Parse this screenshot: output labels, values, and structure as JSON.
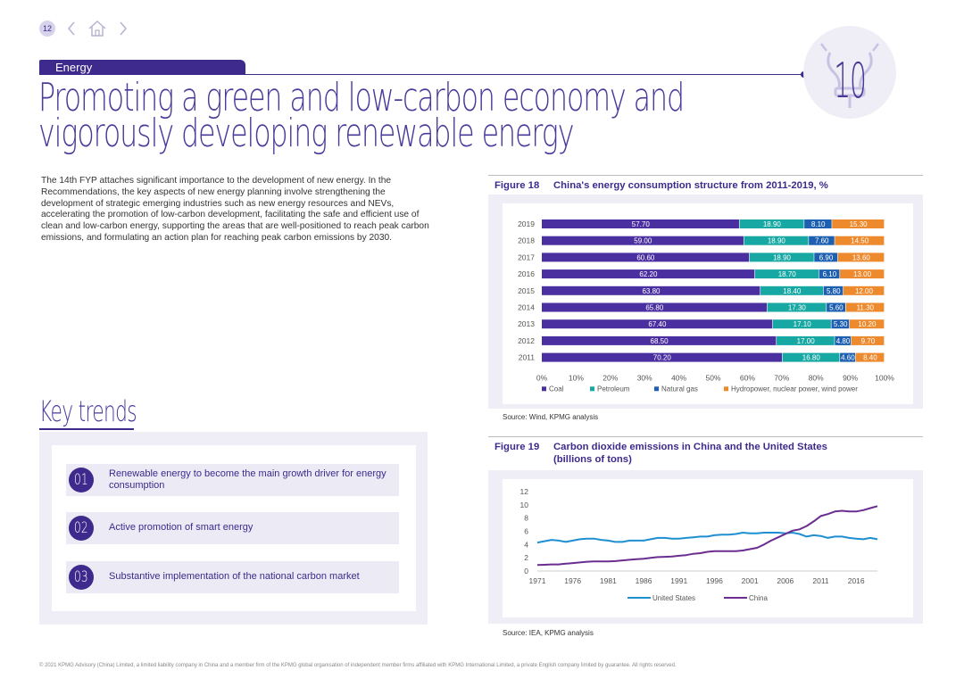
{
  "nav": {
    "page_number": "12"
  },
  "section": {
    "label": "Energy"
  },
  "badge": {
    "number": "10"
  },
  "title": {
    "line1": "Promoting a green and low-carbon economy and",
    "line2": "vigorously developing renewable energy"
  },
  "body_text": "The 14th FYP attaches significant importance to the development of new energy. In the Recommendations, the key aspects of new energy planning involve strengthening the development of strategic emerging industries such as new energy resources and NEVs, accelerating the promotion of low-carbon development, facilitating the safe and efficient use of clean and low-carbon energy, supporting the areas that are well-positioned to reach peak carbon emissions, and formulating an action plan for reaching peak carbon emissions by 2030.",
  "key_trends": {
    "heading": "Key trends",
    "items": [
      {
        "num": "01",
        "text": "Renewable energy to become the main growth driver for energy consumption"
      },
      {
        "num": "02",
        "text": "Active promotion of smart energy"
      },
      {
        "num": "03",
        "text": "Substantive implementation of the national carbon market"
      }
    ]
  },
  "figure18": {
    "label": "Figure 18",
    "title": "China's energy consumption structure from 2011-2019, %",
    "source": "Source: Wind, KPMG analysis"
  },
  "figure19": {
    "label": "Figure 19",
    "title_line1": "Carbon dioxide emissions in China and the United States",
    "title_line2": "(billions of tons)",
    "source": "Source: IEA, KPMG analysis"
  },
  "colors": {
    "coal": "#4a2fa0",
    "petroleum": "#17a8a3",
    "natural_gas": "#1d5fb0",
    "hydro": "#ee8a2e",
    "us": "#1f8fd1",
    "china": "#6b2d8f",
    "brand": "#3d2a8c"
  },
  "chart_data": [
    {
      "type": "bar",
      "orientation": "horizontal-stacked-100",
      "title": "China's energy consumption structure from 2011-2019, %",
      "categories": [
        "2019",
        "2018",
        "2017",
        "2016",
        "2015",
        "2014",
        "2013",
        "2012",
        "2011"
      ],
      "series": [
        {
          "name": "Coal",
          "values": [
            57.7,
            59.0,
            60.6,
            62.2,
            63.8,
            65.8,
            67.4,
            68.5,
            70.2
          ],
          "labels": [
            "57.70",
            "59.00",
            "60.60",
            "62.20",
            "63.80",
            "65.80",
            "67.40",
            "68.50",
            "70.20"
          ]
        },
        {
          "name": "Petroleum",
          "values": [
            18.9,
            18.9,
            18.9,
            18.7,
            18.4,
            17.3,
            17.1,
            17.0,
            16.8
          ],
          "labels": [
            "18.90",
            "18.90",
            "18.90",
            "18.70",
            "18.40",
            "17.30",
            "17.10",
            "17.00",
            "16.80"
          ]
        },
        {
          "name": "Natural gas",
          "values": [
            8.1,
            7.6,
            6.9,
            6.1,
            5.8,
            5.6,
            5.3,
            4.8,
            4.6
          ],
          "labels": [
            "8.10",
            "7.60",
            "6.90",
            "6.10",
            "5.80",
            "5.60",
            "5.30",
            "4.80",
            "4.60"
          ]
        },
        {
          "name": "Hydropower, nuclear power, wind power",
          "values": [
            15.3,
            14.5,
            13.6,
            13.0,
            12.0,
            11.3,
            10.2,
            9.7,
            8.4
          ],
          "labels": [
            "15.30",
            "14.50",
            "13.60",
            "13.00",
            "12.00",
            "11.30",
            "10.20",
            "9.70",
            "8.40"
          ]
        }
      ],
      "x_ticks": [
        "0%",
        "10%",
        "20%",
        "30%",
        "40%",
        "50%",
        "60%",
        "70%",
        "80%",
        "90%",
        "100%"
      ],
      "xlim": [
        0,
        100
      ],
      "legend": "bottom"
    },
    {
      "type": "line",
      "title": "Carbon dioxide emissions in China and the United States (billions of tons)",
      "x": [
        1971,
        1972,
        1973,
        1974,
        1975,
        1976,
        1977,
        1978,
        1979,
        1980,
        1981,
        1982,
        1983,
        1984,
        1985,
        1986,
        1987,
        1988,
        1989,
        1990,
        1991,
        1992,
        1993,
        1994,
        1995,
        1996,
        1997,
        1998,
        1999,
        2000,
        2001,
        2002,
        2003,
        2004,
        2005,
        2006,
        2007,
        2008,
        2009,
        2010,
        2011,
        2012,
        2013,
        2014,
        2015,
        2016,
        2017,
        2018,
        2019
      ],
      "series": [
        {
          "name": "United States",
          "values": [
            4.3,
            4.5,
            4.7,
            4.6,
            4.4,
            4.6,
            4.8,
            4.9,
            4.9,
            4.7,
            4.6,
            4.4,
            4.4,
            4.6,
            4.6,
            4.6,
            4.8,
            5.0,
            5.0,
            4.9,
            4.9,
            5.0,
            5.1,
            5.2,
            5.2,
            5.4,
            5.5,
            5.5,
            5.6,
            5.8,
            5.7,
            5.7,
            5.8,
            5.8,
            5.8,
            5.7,
            5.8,
            5.6,
            5.2,
            5.4,
            5.3,
            5.0,
            5.2,
            5.2,
            5.0,
            4.9,
            4.8,
            5.0,
            4.8
          ]
        },
        {
          "name": "China",
          "values": [
            0.9,
            0.95,
            1.0,
            1.0,
            1.1,
            1.2,
            1.3,
            1.4,
            1.45,
            1.45,
            1.45,
            1.5,
            1.6,
            1.7,
            1.8,
            1.85,
            2.0,
            2.1,
            2.15,
            2.2,
            2.3,
            2.4,
            2.6,
            2.7,
            2.9,
            3.0,
            3.0,
            3.0,
            3.0,
            3.1,
            3.3,
            3.5,
            4.0,
            4.6,
            5.1,
            5.6,
            6.1,
            6.3,
            6.8,
            7.5,
            8.3,
            8.6,
            9.0,
            9.1,
            9.0,
            9.0,
            9.2,
            9.5,
            9.8
          ]
        }
      ],
      "x_ticks": [
        "1971",
        "1976",
        "1981",
        "1986",
        "1991",
        "1996",
        "2001",
        "2006",
        "2011",
        "2016"
      ],
      "y_ticks": [
        "0",
        "2",
        "4",
        "6",
        "8",
        "10",
        "12"
      ],
      "ylim": [
        0,
        12
      ],
      "legend": "bottom"
    }
  ],
  "footer": "© 2021 KPMG Advisory (China) Limited, a limited liability company in China and a member firm of the KPMG global organisation of independent member firms affiliated with KPMG International Limited, a private English company limited by guarantee. All rights reserved."
}
